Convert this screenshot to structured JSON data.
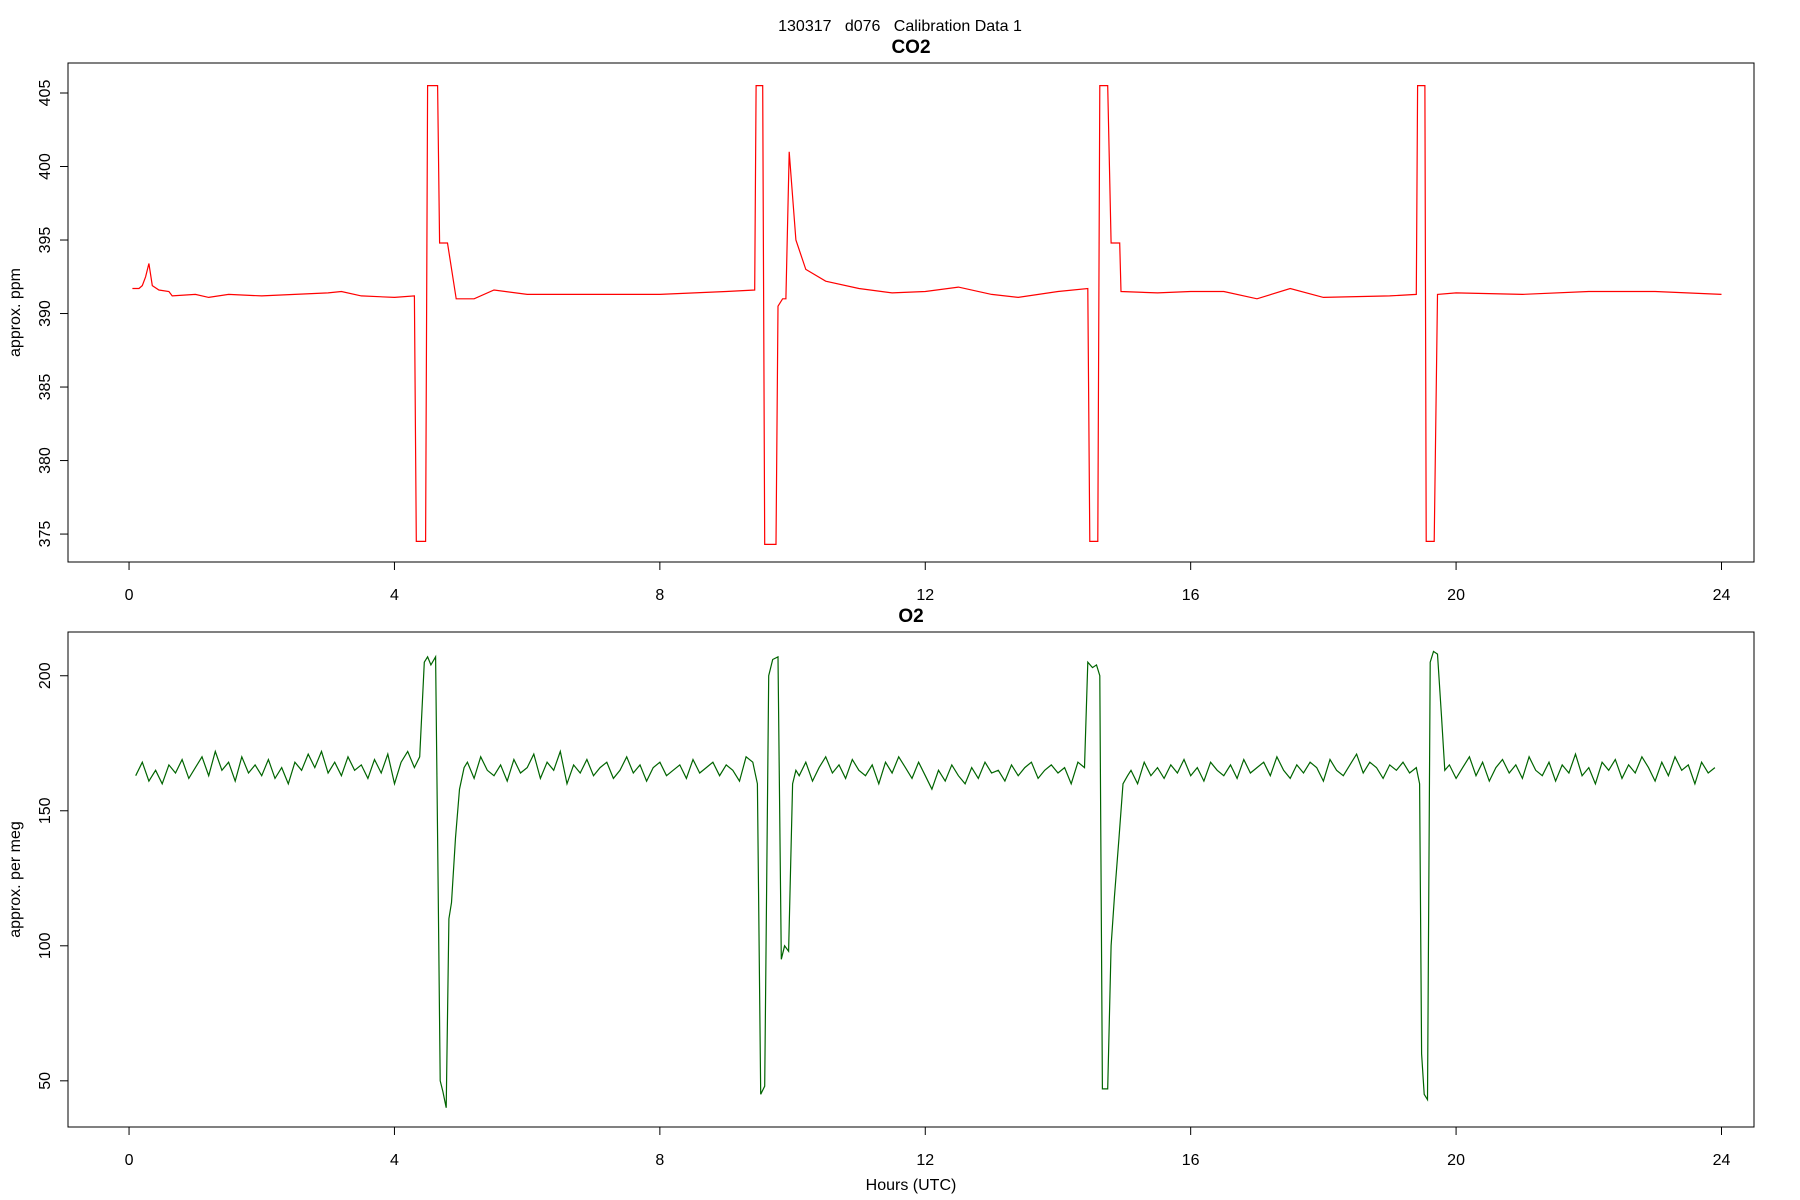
{
  "suptitle": "130317   d076   Calibration Data 1",
  "chart_data": [
    {
      "type": "line",
      "title": "CO2",
      "ylabel": "approx. ppm",
      "color": "#ff0000",
      "xlim": [
        -0.92,
        24.49
      ],
      "ylim": [
        373.1,
        407.04
      ],
      "xticks": [
        0,
        4,
        8,
        12,
        16,
        20,
        24
      ],
      "yticks": [
        375,
        380,
        385,
        390,
        395,
        400,
        405
      ],
      "x": [
        0.05,
        0.15,
        0.2,
        0.25,
        0.3,
        0.35,
        0.45,
        0.6,
        0.65,
        1.0,
        1.2,
        1.5,
        2.0,
        2.5,
        3.0,
        3.2,
        3.5,
        4.0,
        4.3,
        4.33,
        4.47,
        4.5,
        4.65,
        4.68,
        4.8,
        4.93,
        5.2,
        5.5,
        6.0,
        7.0,
        8.0,
        9.0,
        9.43,
        9.45,
        9.55,
        9.58,
        9.75,
        9.78,
        9.85,
        9.9,
        9.95,
        10.05,
        10.2,
        10.5,
        11,
        11.5,
        12,
        12.5,
        13,
        13.4,
        14,
        14.45,
        14.48,
        14.6,
        14.63,
        14.75,
        14.8,
        14.93,
        14.95,
        15.5,
        16,
        16.5,
        17,
        17.5,
        18,
        19,
        19.4,
        19.42,
        19.53,
        19.55,
        19.67,
        19.72,
        20,
        21,
        22,
        23,
        24
      ],
      "values": [
        391.7,
        391.7,
        391.9,
        392.5,
        393.4,
        391.9,
        391.6,
        391.5,
        391.2,
        391.3,
        391.1,
        391.3,
        391.2,
        391.3,
        391.4,
        391.5,
        391.2,
        391.1,
        391.2,
        374.5,
        374.5,
        405.5,
        405.5,
        394.8,
        394.8,
        391.0,
        391.0,
        391.6,
        391.3,
        391.3,
        391.3,
        391.5,
        391.6,
        405.5,
        405.5,
        374.3,
        374.3,
        390.5,
        391.0,
        391.0,
        401.0,
        395,
        393,
        392.2,
        391.7,
        391.4,
        391.5,
        391.8,
        391.3,
        391.1,
        391.5,
        391.7,
        374.5,
        374.5,
        405.5,
        405.5,
        394.8,
        394.8,
        391.5,
        391.4,
        391.5,
        391.5,
        391.0,
        391.7,
        391.1,
        391.2,
        391.3,
        405.5,
        405.5,
        374.5,
        374.5,
        391.3,
        391.4,
        391.3,
        391.5,
        391.5,
        391.3
      ]
    },
    {
      "type": "line",
      "title": "O2",
      "ylabel": "approx. per meg",
      "xlabel": "Hours (UTC)",
      "color": "#006400",
      "xlim": [
        -0.92,
        24.49
      ],
      "ylim": [
        32.9,
        216.2
      ],
      "xticks": [
        0,
        4,
        8,
        12,
        16,
        20,
        24
      ],
      "yticks": [
        50,
        100,
        150,
        200
      ],
      "x": [
        0.1,
        0.2,
        0.3,
        0.4,
        0.5,
        0.6,
        0.7,
        0.8,
        0.9,
        1.0,
        1.1,
        1.2,
        1.3,
        1.4,
        1.5,
        1.6,
        1.7,
        1.8,
        1.9,
        2.0,
        2.1,
        2.2,
        2.3,
        2.4,
        2.5,
        2.6,
        2.7,
        2.8,
        2.9,
        3.0,
        3.1,
        3.2,
        3.3,
        3.4,
        3.5,
        3.6,
        3.7,
        3.8,
        3.9,
        4.0,
        4.1,
        4.2,
        4.3,
        4.38,
        4.45,
        4.5,
        4.55,
        4.62,
        4.66,
        4.69,
        4.73,
        4.78,
        4.82,
        4.86,
        4.92,
        4.98,
        5.05,
        5.1,
        5.2,
        5.3,
        5.4,
        5.5,
        5.6,
        5.7,
        5.8,
        5.9,
        6.0,
        6.1,
        6.2,
        6.3,
        6.4,
        6.5,
        6.6,
        6.7,
        6.8,
        6.9,
        7.0,
        7.1,
        7.2,
        7.3,
        7.4,
        7.5,
        7.6,
        7.7,
        7.8,
        7.9,
        8.0,
        8.1,
        8.2,
        8.3,
        8.4,
        8.5,
        8.6,
        8.7,
        8.8,
        8.9,
        9.0,
        9.1,
        9.2,
        9.3,
        9.4,
        9.47,
        9.52,
        9.58,
        9.64,
        9.7,
        9.78,
        9.83,
        9.88,
        9.94,
        10.0,
        10.05,
        10.1,
        10.2,
        10.3,
        10.4,
        10.5,
        10.6,
        10.7,
        10.8,
        10.9,
        11.0,
        11.1,
        11.2,
        11.3,
        11.4,
        11.5,
        11.6,
        11.7,
        11.8,
        11.9,
        12.0,
        12.1,
        12.2,
        12.3,
        12.4,
        12.5,
        12.6,
        12.7,
        12.8,
        12.9,
        13.0,
        13.1,
        13.2,
        13.3,
        13.4,
        13.5,
        13.6,
        13.7,
        13.8,
        13.9,
        14.0,
        14.1,
        14.2,
        14.3,
        14.4,
        14.45,
        14.52,
        14.58,
        14.63,
        14.67,
        14.75,
        14.8,
        14.85,
        14.92,
        14.98,
        15.05,
        15.1,
        15.2,
        15.3,
        15.4,
        15.5,
        15.6,
        15.7,
        15.8,
        15.9,
        16.0,
        16.1,
        16.2,
        16.3,
        16.4,
        16.5,
        16.6,
        16.7,
        16.8,
        16.9,
        17.0,
        17.1,
        17.2,
        17.3,
        17.4,
        17.5,
        17.6,
        17.7,
        17.8,
        17.9,
        18.0,
        18.1,
        18.2,
        18.3,
        18.4,
        18.5,
        18.6,
        18.7,
        18.8,
        18.9,
        19.0,
        19.1,
        19.2,
        19.3,
        19.4,
        19.45,
        19.48,
        19.52,
        19.57,
        19.61,
        19.66,
        19.72,
        19.78,
        19.83,
        19.9,
        20.0,
        20.1,
        20.2,
        20.3,
        20.4,
        20.5,
        20.6,
        20.7,
        20.8,
        20.9,
        21.0,
        21.1,
        21.2,
        21.3,
        21.4,
        21.5,
        21.6,
        21.7,
        21.8,
        21.9,
        22.0,
        22.1,
        22.2,
        22.3,
        22.4,
        22.5,
        22.6,
        22.7,
        22.8,
        22.9,
        23.0,
        23.1,
        23.2,
        23.3,
        23.4,
        23.5,
        23.6,
        23.7,
        23.8,
        23.9
      ],
      "values": [
        163,
        168,
        161,
        165,
        160,
        167,
        164,
        169,
        162,
        166,
        170,
        163,
        172,
        165,
        168,
        161,
        170,
        164,
        167,
        163,
        169,
        162,
        166,
        160,
        168,
        165,
        171,
        166,
        172,
        164,
        168,
        163,
        170,
        165,
        167,
        162,
        169,
        164,
        171,
        160,
        168,
        172,
        166,
        170,
        205,
        207,
        204,
        207,
        120,
        50,
        46,
        40,
        110,
        116,
        140,
        158,
        166,
        168,
        162,
        170,
        165,
        163,
        167,
        161,
        169,
        164,
        166,
        171,
        162,
        168,
        165,
        172,
        160,
        167,
        164,
        169,
        163,
        166,
        168,
        162,
        165,
        170,
        164,
        167,
        161,
        166,
        168,
        163,
        165,
        167,
        162,
        169,
        164,
        166,
        168,
        163,
        167,
        165,
        161,
        170,
        168,
        160,
        45,
        48,
        200,
        206,
        207,
        95,
        100,
        98,
        160,
        165,
        163,
        168,
        161,
        166,
        170,
        164,
        167,
        162,
        169,
        165,
        163,
        167,
        160,
        168,
        164,
        170,
        166,
        162,
        168,
        163,
        158,
        165,
        161,
        167,
        163,
        160,
        166,
        162,
        168,
        164,
        165,
        161,
        167,
        163,
        166,
        168,
        162,
        165,
        167,
        164,
        166,
        160,
        168,
        166,
        205,
        203,
        204,
        200,
        47,
        47,
        100,
        118,
        140,
        160,
        163,
        165,
        160,
        168,
        163,
        166,
        162,
        167,
        164,
        169,
        163,
        166,
        161,
        168,
        165,
        163,
        167,
        162,
        169,
        164,
        166,
        168,
        163,
        170,
        165,
        162,
        167,
        164,
        168,
        166,
        161,
        169,
        165,
        163,
        167,
        171,
        164,
        168,
        166,
        162,
        167,
        165,
        168,
        164,
        166,
        160,
        60,
        45,
        43,
        205,
        209,
        208,
        185,
        165,
        167,
        162,
        166,
        170,
        163,
        168,
        161,
        166,
        169,
        164,
        167,
        162,
        170,
        165,
        163,
        168,
        161,
        167,
        164,
        171,
        163,
        166,
        160,
        168,
        165,
        169,
        162,
        167,
        164,
        170,
        166,
        161,
        168,
        163,
        170,
        165,
        167,
        160,
        168,
        164,
        166
      ]
    }
  ]
}
